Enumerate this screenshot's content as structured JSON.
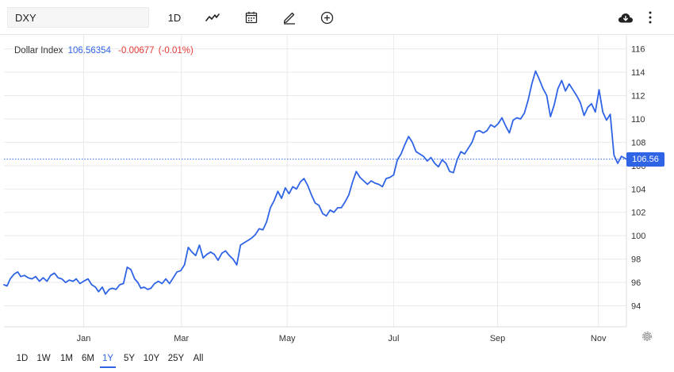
{
  "toolbar": {
    "symbol": "DXY",
    "interval": "1D",
    "icons": [
      "line-chart-icon",
      "calendar-icon",
      "draw-pen-icon",
      "compare-plus-icon",
      "cloud-download-icon",
      "more-vertical-icon"
    ]
  },
  "legend": {
    "name": "Dollar Index",
    "price": "106.56354",
    "change": "-0.00677",
    "change_pct": "(-0.01%)"
  },
  "price_badge": "106.56",
  "ranges": [
    "1D",
    "1W",
    "1M",
    "6M",
    "1Y",
    "5Y",
    "10Y",
    "25Y",
    "All"
  ],
  "active_range": "1Y",
  "colors": {
    "line": "#2f64e6",
    "down": "#e53935",
    "grid": "#e9e9e9"
  },
  "chart_data": {
    "type": "line",
    "title": "",
    "xlabel": "",
    "ylabel": "",
    "ylim": [
      92.2,
      117.2
    ],
    "xlim": [
      0,
      100
    ],
    "y_ticks": [
      94,
      96,
      98,
      100,
      102,
      104,
      106,
      108,
      110,
      112,
      114,
      116
    ],
    "x_ticks": [
      {
        "label": "Jan",
        "pos": 12.8
      },
      {
        "label": "Mar",
        "pos": 28.5
      },
      {
        "label": "May",
        "pos": 45.5
      },
      {
        "label": "Jul",
        "pos": 62.6
      },
      {
        "label": "Sep",
        "pos": 79.3
      },
      {
        "label": "Nov",
        "pos": 95.5
      }
    ],
    "last_value": 106.56,
    "grid": true,
    "series": [
      {
        "values": [
          [
            0.0,
            95.8
          ],
          [
            0.5,
            95.7
          ],
          [
            1.0,
            96.3
          ],
          [
            1.6,
            96.7
          ],
          [
            2.2,
            96.9
          ],
          [
            2.7,
            96.5
          ],
          [
            3.3,
            96.6
          ],
          [
            3.9,
            96.4
          ],
          [
            4.5,
            96.3
          ],
          [
            5.1,
            96.5
          ],
          [
            5.7,
            96.1
          ],
          [
            6.3,
            96.4
          ],
          [
            6.9,
            96.1
          ],
          [
            7.5,
            96.6
          ],
          [
            8.1,
            96.8
          ],
          [
            8.7,
            96.4
          ],
          [
            9.3,
            96.3
          ],
          [
            9.9,
            96.0
          ],
          [
            10.5,
            96.2
          ],
          [
            11.1,
            96.1
          ],
          [
            11.6,
            96.3
          ],
          [
            12.2,
            95.9
          ],
          [
            12.8,
            96.1
          ],
          [
            13.5,
            96.3
          ],
          [
            14.1,
            95.8
          ],
          [
            14.7,
            95.6
          ],
          [
            15.2,
            95.2
          ],
          [
            15.8,
            95.6
          ],
          [
            16.3,
            95.0
          ],
          [
            16.9,
            95.4
          ],
          [
            17.4,
            95.5
          ],
          [
            18.0,
            95.4
          ],
          [
            18.6,
            95.8
          ],
          [
            19.2,
            95.9
          ],
          [
            19.8,
            97.3
          ],
          [
            20.4,
            97.1
          ],
          [
            21.0,
            96.3
          ],
          [
            21.5,
            96.0
          ],
          [
            22.0,
            95.5
          ],
          [
            22.5,
            95.6
          ],
          [
            23.1,
            95.4
          ],
          [
            23.6,
            95.5
          ],
          [
            24.2,
            95.9
          ],
          [
            24.8,
            96.1
          ],
          [
            25.4,
            95.9
          ],
          [
            26.0,
            96.3
          ],
          [
            26.6,
            95.9
          ],
          [
            27.2,
            96.4
          ],
          [
            27.8,
            96.9
          ],
          [
            28.4,
            97.0
          ],
          [
            29.0,
            97.5
          ],
          [
            29.6,
            99.0
          ],
          [
            30.2,
            98.6
          ],
          [
            30.8,
            98.3
          ],
          [
            31.4,
            99.2
          ],
          [
            32.0,
            98.1
          ],
          [
            32.6,
            98.4
          ],
          [
            33.2,
            98.6
          ],
          [
            33.8,
            98.4
          ],
          [
            34.4,
            97.9
          ],
          [
            35.0,
            98.5
          ],
          [
            35.6,
            98.7
          ],
          [
            36.2,
            98.3
          ],
          [
            36.8,
            98.0
          ],
          [
            37.4,
            97.5
          ],
          [
            38.0,
            99.2
          ],
          [
            38.6,
            99.4
          ],
          [
            39.2,
            99.6
          ],
          [
            39.8,
            99.8
          ],
          [
            40.4,
            100.1
          ],
          [
            41.0,
            100.6
          ],
          [
            41.6,
            100.5
          ],
          [
            42.2,
            101.2
          ],
          [
            42.8,
            102.4
          ],
          [
            43.4,
            103.0
          ],
          [
            44.0,
            103.8
          ],
          [
            44.6,
            103.2
          ],
          [
            45.2,
            104.1
          ],
          [
            45.8,
            103.6
          ],
          [
            46.4,
            104.2
          ],
          [
            47.0,
            104.0
          ],
          [
            47.6,
            104.6
          ],
          [
            48.2,
            104.9
          ],
          [
            48.8,
            104.3
          ],
          [
            49.4,
            103.5
          ],
          [
            50.0,
            102.8
          ],
          [
            50.6,
            102.6
          ],
          [
            51.2,
            101.9
          ],
          [
            51.8,
            101.7
          ],
          [
            52.4,
            102.2
          ],
          [
            53.0,
            102.0
          ],
          [
            53.6,
            102.4
          ],
          [
            54.2,
            102.4
          ],
          [
            54.8,
            102.9
          ],
          [
            55.4,
            103.5
          ],
          [
            56.0,
            104.6
          ],
          [
            56.6,
            105.5
          ],
          [
            57.2,
            105.0
          ],
          [
            57.8,
            104.7
          ],
          [
            58.4,
            104.4
          ],
          [
            59.0,
            104.7
          ],
          [
            59.6,
            104.5
          ],
          [
            60.2,
            104.4
          ],
          [
            60.8,
            104.2
          ],
          [
            61.4,
            104.9
          ],
          [
            62.0,
            105.0
          ],
          [
            62.6,
            105.2
          ],
          [
            63.2,
            106.5
          ],
          [
            63.8,
            107.0
          ],
          [
            64.4,
            107.8
          ],
          [
            65.0,
            108.5
          ],
          [
            65.6,
            108.0
          ],
          [
            66.2,
            107.2
          ],
          [
            66.8,
            107.0
          ],
          [
            67.4,
            106.8
          ],
          [
            68.0,
            106.4
          ],
          [
            68.6,
            106.7
          ],
          [
            69.2,
            106.2
          ],
          [
            69.8,
            105.9
          ],
          [
            70.4,
            106.5
          ],
          [
            71.0,
            106.2
          ],
          [
            71.6,
            105.5
          ],
          [
            72.2,
            105.4
          ],
          [
            72.8,
            106.5
          ],
          [
            73.4,
            107.2
          ],
          [
            74.0,
            107.0
          ],
          [
            74.6,
            107.5
          ],
          [
            75.2,
            108.0
          ],
          [
            75.8,
            108.9
          ],
          [
            76.4,
            109.0
          ],
          [
            77.0,
            108.8
          ],
          [
            77.6,
            109.0
          ],
          [
            78.2,
            109.5
          ],
          [
            78.8,
            109.3
          ],
          [
            79.4,
            109.6
          ],
          [
            80.0,
            110.1
          ],
          [
            80.6,
            109.4
          ],
          [
            81.2,
            108.8
          ],
          [
            81.8,
            109.9
          ],
          [
            82.4,
            110.1
          ],
          [
            83.0,
            110.0
          ],
          [
            83.6,
            110.5
          ],
          [
            84.2,
            111.6
          ],
          [
            84.8,
            113.0
          ],
          [
            85.4,
            114.1
          ],
          [
            86.0,
            113.4
          ],
          [
            86.6,
            112.6
          ],
          [
            87.2,
            112.0
          ],
          [
            87.8,
            110.2
          ],
          [
            88.4,
            111.2
          ],
          [
            89.0,
            112.6
          ],
          [
            89.6,
            113.3
          ],
          [
            90.2,
            112.4
          ],
          [
            90.8,
            113.0
          ],
          [
            91.4,
            112.5
          ],
          [
            92.0,
            112.0
          ],
          [
            92.6,
            111.4
          ],
          [
            93.2,
            110.3
          ],
          [
            93.8,
            111.0
          ],
          [
            94.4,
            111.3
          ],
          [
            95.0,
            110.6
          ],
          [
            95.6,
            112.5
          ],
          [
            96.2,
            110.6
          ],
          [
            96.8,
            109.9
          ],
          [
            97.4,
            110.4
          ],
          [
            98.0,
            106.9
          ],
          [
            98.6,
            106.2
          ],
          [
            99.2,
            106.8
          ],
          [
            100.0,
            106.56
          ]
        ]
      }
    ]
  }
}
